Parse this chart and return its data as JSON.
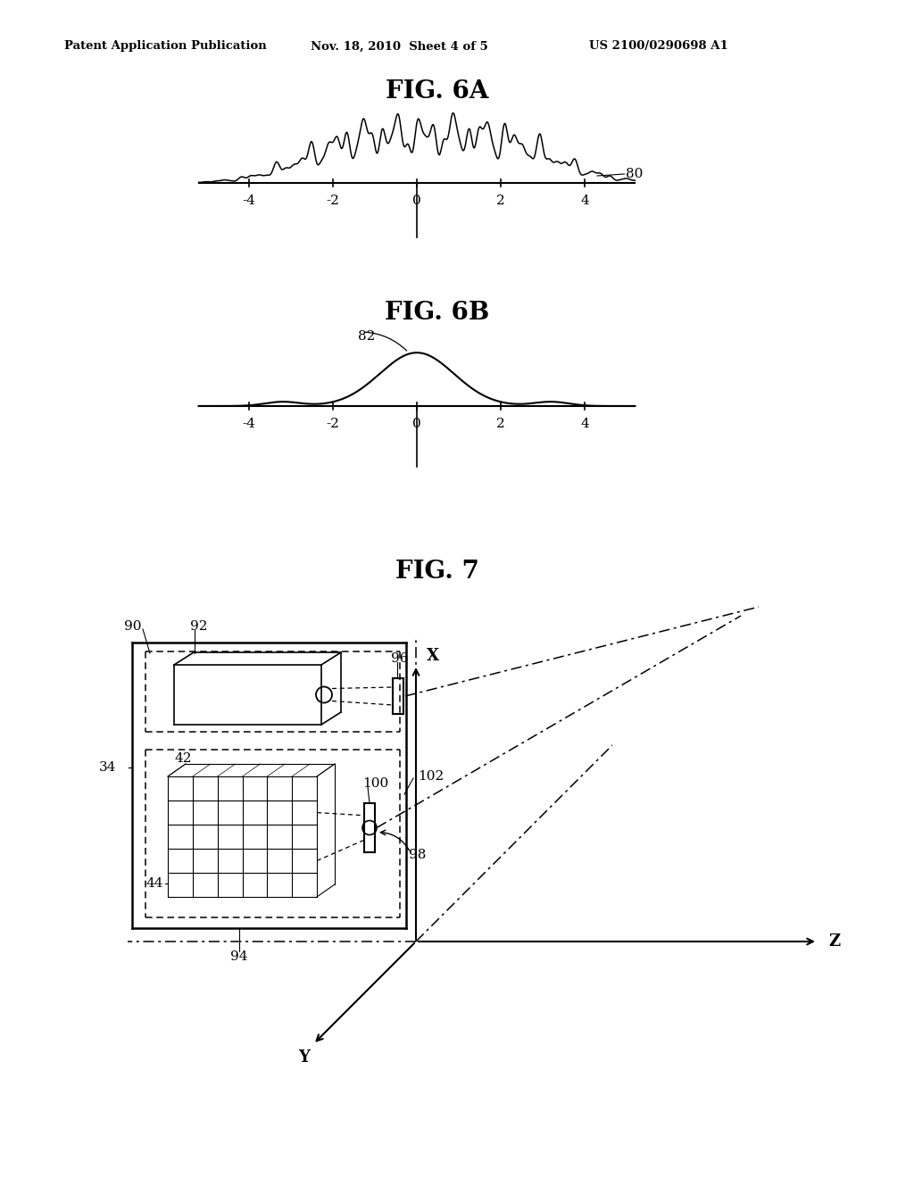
{
  "bg_color": "#ffffff",
  "header_left": "Patent Application Publication",
  "header_mid": "Nov. 18, 2010  Sheet 4 of 5",
  "header_right": "US 2100/0290698 A1",
  "fig6a_title": "FIG. 6A",
  "fig6b_title": "FIG. 6B",
  "fig7_title": "FIG. 7",
  "label_80": "80",
  "label_82": "82",
  "label_34": "34",
  "label_42": "42",
  "label_44": "44",
  "label_90": "90",
  "label_92": "92",
  "label_94": "94",
  "label_96": "96",
  "label_98": "98",
  "label_100": "100",
  "label_102": "102"
}
